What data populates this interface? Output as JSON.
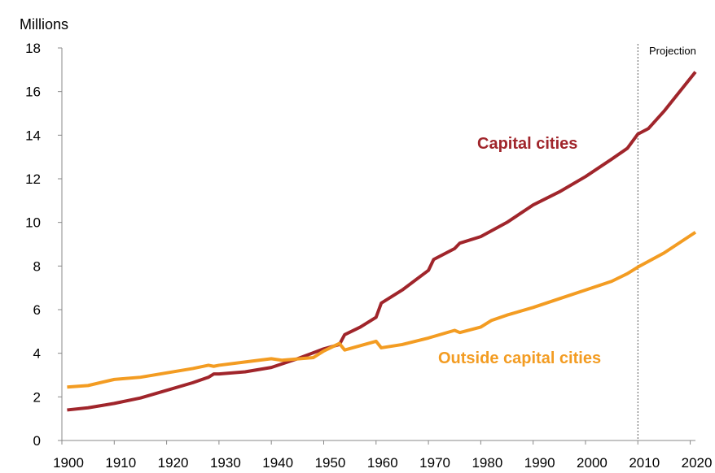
{
  "chart_data": {
    "type": "line",
    "ylabel": "Millions",
    "xlim": [
      1900,
      2021
    ],
    "ylim": [
      0,
      18
    ],
    "xticks": [
      1900,
      1910,
      1920,
      1930,
      1940,
      1950,
      1960,
      1970,
      1980,
      1990,
      2000,
      2010,
      2020
    ],
    "yticks": [
      0,
      2,
      4,
      6,
      8,
      10,
      12,
      14,
      16,
      18
    ],
    "grid": false,
    "projection": {
      "label": "Projection",
      "x": 2010
    },
    "series": [
      {
        "name": "Capital cities",
        "color": "#a0252b",
        "x": [
          1901,
          1905,
          1910,
          1915,
          1920,
          1925,
          1928,
          1929,
          1930,
          1935,
          1940,
          1945,
          1950,
          1953,
          1954,
          1957,
          1960,
          1961,
          1965,
          1970,
          1971,
          1975,
          1976,
          1980,
          1985,
          1990,
          1995,
          2000,
          2005,
          2008,
          2010,
          2012,
          2015,
          2021
        ],
        "values": [
          1.4,
          1.5,
          1.7,
          1.95,
          2.3,
          2.65,
          2.9,
          3.05,
          3.05,
          3.15,
          3.35,
          3.75,
          4.2,
          4.4,
          4.85,
          5.2,
          5.65,
          6.3,
          6.9,
          7.8,
          8.3,
          8.8,
          9.05,
          9.35,
          10.0,
          10.8,
          11.4,
          12.1,
          12.9,
          13.4,
          14.05,
          14.3,
          15.1,
          16.9
        ]
      },
      {
        "name": "Outside capital cities",
        "color": "#f39c22",
        "x": [
          1901,
          1905,
          1910,
          1915,
          1920,
          1925,
          1928,
          1929,
          1930,
          1935,
          1940,
          1942,
          1948,
          1950,
          1953,
          1954,
          1957,
          1960,
          1961,
          1965,
          1970,
          1975,
          1976,
          1980,
          1982,
          1985,
          1990,
          1995,
          2000,
          2005,
          2008,
          2010,
          2015,
          2021
        ],
        "values": [
          2.45,
          2.52,
          2.8,
          2.9,
          3.1,
          3.3,
          3.45,
          3.4,
          3.45,
          3.6,
          3.75,
          3.68,
          3.8,
          4.1,
          4.45,
          4.15,
          4.35,
          4.55,
          4.25,
          4.4,
          4.7,
          5.05,
          4.95,
          5.2,
          5.5,
          5.75,
          6.1,
          6.5,
          6.9,
          7.3,
          7.65,
          7.95,
          8.6,
          9.55
        ]
      }
    ]
  }
}
